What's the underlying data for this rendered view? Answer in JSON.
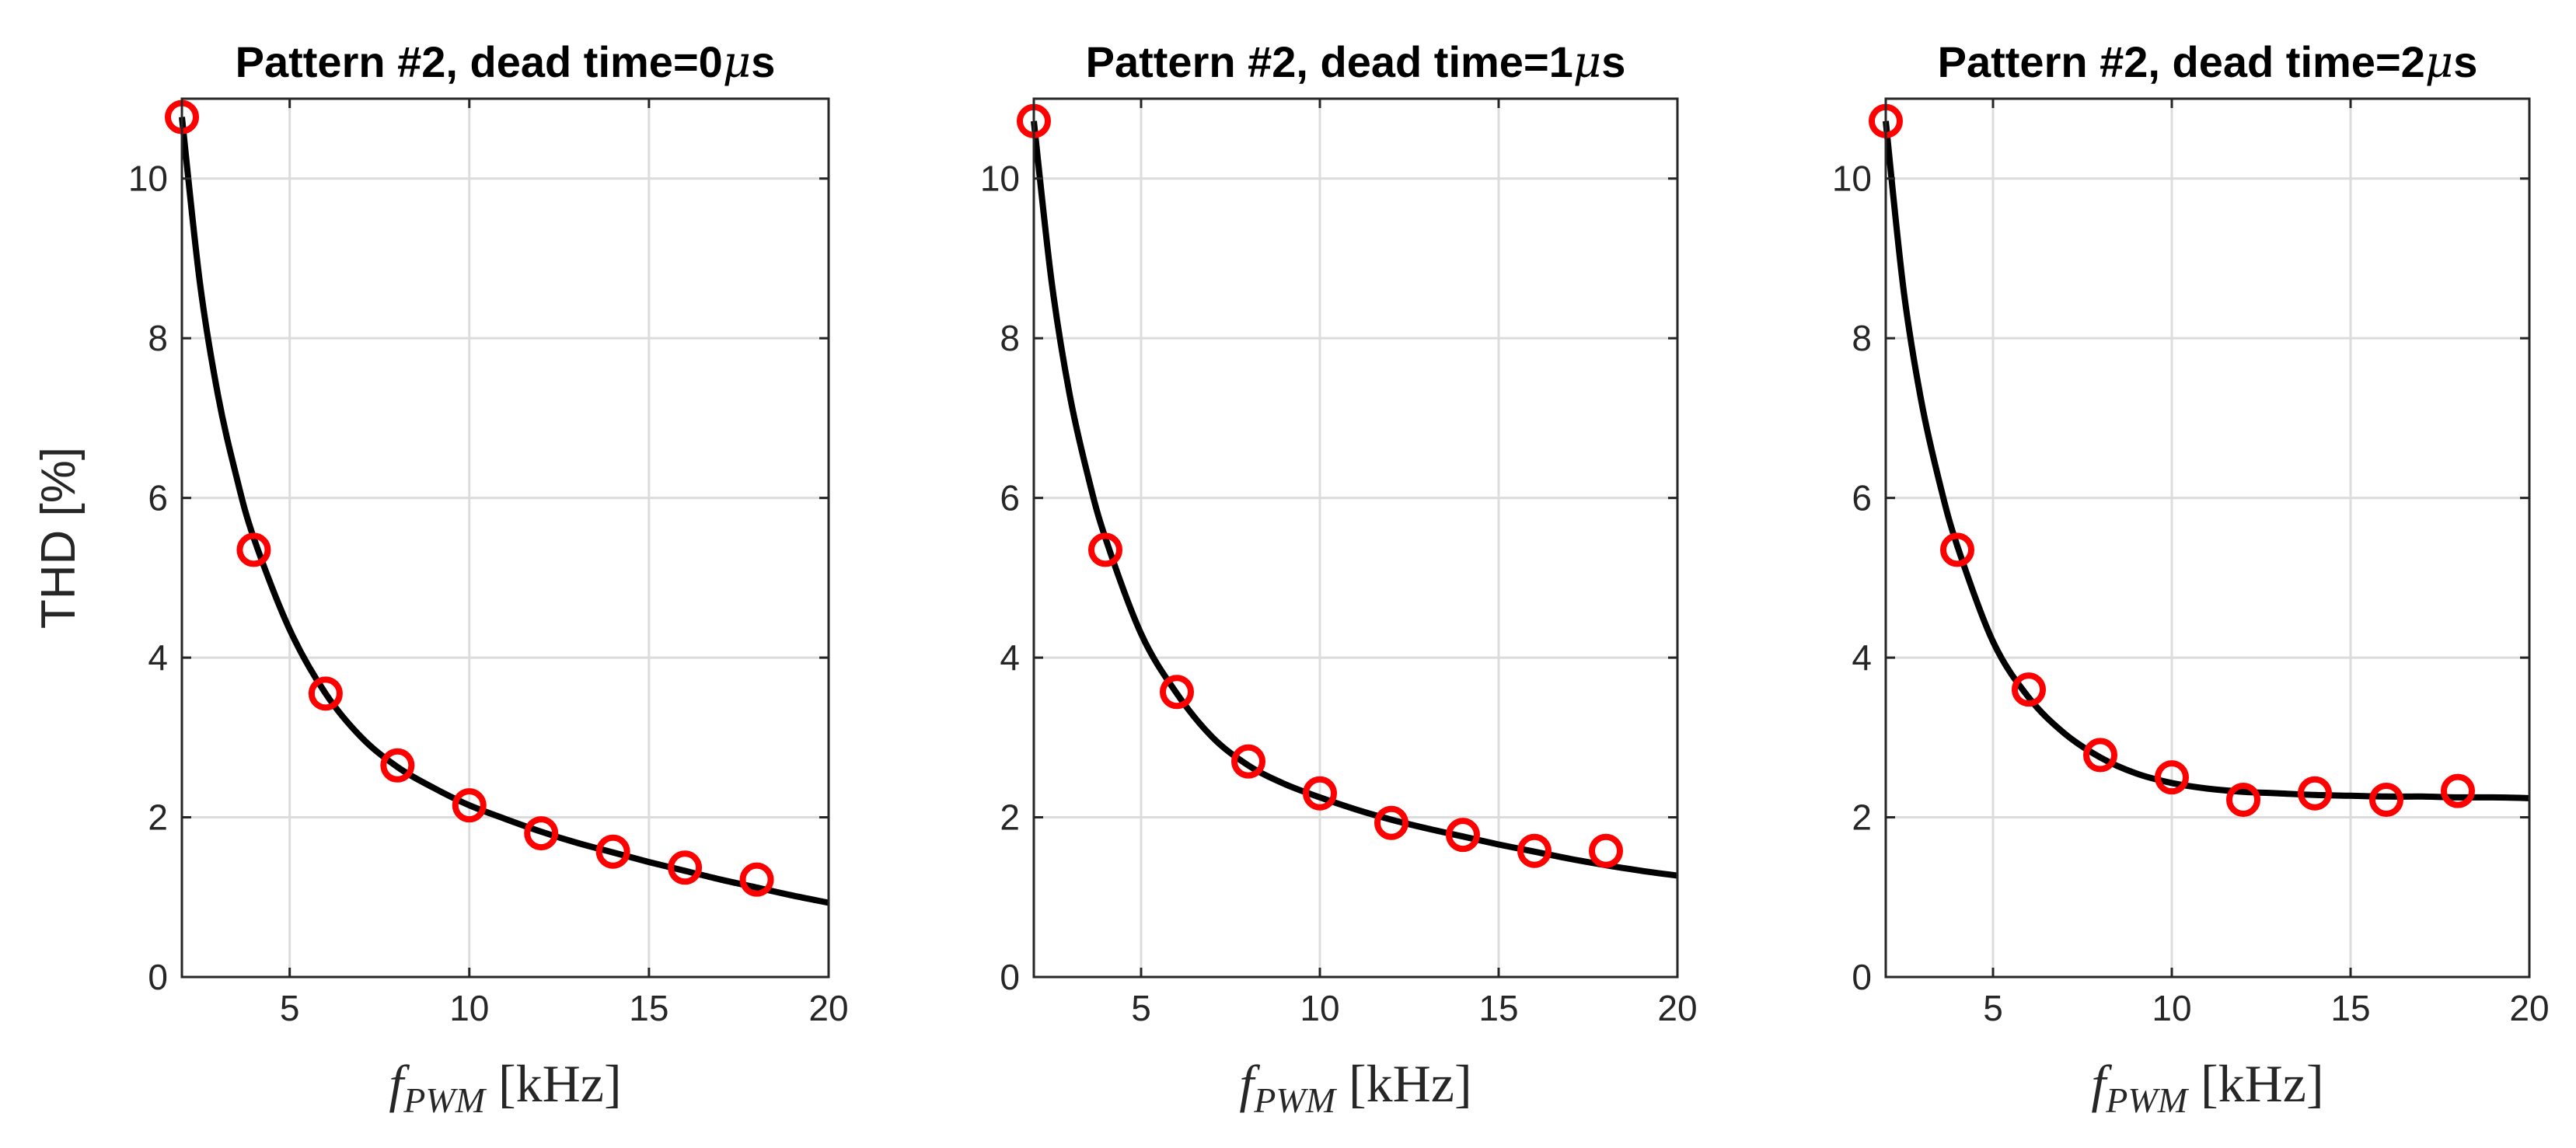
{
  "chart_data": [
    {
      "type": "scatter",
      "title": "Pattern #2, dead time=0μs",
      "title_prefix": "Pattern #2, dead time=0",
      "title_unit_mu": "μ",
      "title_unit_s": "s",
      "ylabel": "THD [%]",
      "xlabel_f": "f",
      "xlabel_sub": "PWM",
      "xlabel_unit": " [kHz]",
      "xlim": [
        2,
        20
      ],
      "ylim": [
        0,
        11
      ],
      "xticks": [
        5,
        10,
        15,
        20
      ],
      "yticks": [
        0,
        2,
        4,
        6,
        8,
        10
      ],
      "grid": true,
      "series": [
        {
          "kind": "markers",
          "marker": "circle",
          "color": "#ff0000",
          "x": [
            2,
            4,
            6,
            8,
            10,
            12,
            14,
            16,
            18
          ],
          "y": [
            10.77,
            5.35,
            3.55,
            2.65,
            2.15,
            1.8,
            1.57,
            1.37,
            1.22
          ]
        },
        {
          "kind": "line",
          "color": "#000000",
          "x": [
            2,
            2.5,
            3,
            3.5,
            4,
            5,
            6,
            7,
            8,
            9,
            10,
            11,
            12,
            13,
            14,
            15,
            16,
            17,
            18,
            19,
            20
          ],
          "y": [
            10.77,
            8.7,
            7.3,
            6.3,
            5.5,
            4.35,
            3.55,
            3.0,
            2.63,
            2.37,
            2.15,
            1.98,
            1.82,
            1.68,
            1.56,
            1.44,
            1.33,
            1.22,
            1.12,
            1.02,
            0.93
          ]
        }
      ]
    },
    {
      "type": "scatter",
      "title": "Pattern #2, dead time=1μs",
      "title_prefix": "Pattern #2, dead time=1",
      "title_unit_mu": "μ",
      "title_unit_s": "s",
      "ylabel": "",
      "xlabel_f": "f",
      "xlabel_sub": "PWM",
      "xlabel_unit": " [kHz]",
      "xlim": [
        2,
        20
      ],
      "ylim": [
        0,
        11
      ],
      "xticks": [
        5,
        10,
        15,
        20
      ],
      "yticks": [
        0,
        2,
        4,
        6,
        8,
        10
      ],
      "grid": true,
      "series": [
        {
          "kind": "markers",
          "marker": "circle",
          "color": "#ff0000",
          "x": [
            2,
            4,
            6,
            8,
            10,
            12,
            14,
            16,
            18
          ],
          "y": [
            10.72,
            5.35,
            3.57,
            2.7,
            2.3,
            1.93,
            1.78,
            1.58,
            1.58
          ]
        },
        {
          "kind": "line",
          "color": "#000000",
          "x": [
            2,
            2.5,
            3,
            3.5,
            4,
            5,
            6,
            7,
            8,
            9,
            10,
            11,
            12,
            13,
            14,
            15,
            16,
            17,
            18,
            19,
            20
          ],
          "y": [
            10.72,
            8.7,
            7.3,
            6.3,
            5.5,
            4.3,
            3.55,
            3.0,
            2.65,
            2.42,
            2.25,
            2.1,
            1.97,
            1.86,
            1.76,
            1.66,
            1.57,
            1.48,
            1.4,
            1.33,
            1.27
          ]
        }
      ]
    },
    {
      "type": "scatter",
      "title": "Pattern #2, dead time=2μs",
      "title_prefix": "Pattern #2, dead time=2",
      "title_unit_mu": "μ",
      "title_unit_s": "s",
      "ylabel": "",
      "xlabel_f": "f",
      "xlabel_sub": "PWM",
      "xlabel_unit": " [kHz]",
      "xlim": [
        2,
        20
      ],
      "ylim": [
        0,
        11
      ],
      "xticks": [
        5,
        10,
        15,
        20
      ],
      "yticks": [
        0,
        2,
        4,
        6,
        8,
        10
      ],
      "grid": true,
      "series": [
        {
          "kind": "markers",
          "marker": "circle",
          "color": "#ff0000",
          "x": [
            2,
            4,
            6,
            8,
            10,
            12,
            14,
            16,
            18
          ],
          "y": [
            10.72,
            5.35,
            3.6,
            2.78,
            2.5,
            2.22,
            2.3,
            2.22,
            2.33
          ]
        },
        {
          "kind": "line",
          "color": "#000000",
          "x": [
            2,
            2.5,
            3,
            3.5,
            4,
            5,
            6,
            7,
            8,
            9,
            10,
            11,
            12,
            13,
            14,
            15,
            16,
            17,
            18,
            19,
            20
          ],
          "y": [
            10.72,
            8.6,
            7.2,
            6.2,
            5.4,
            4.2,
            3.5,
            3.05,
            2.75,
            2.55,
            2.43,
            2.36,
            2.32,
            2.3,
            2.28,
            2.27,
            2.26,
            2.26,
            2.25,
            2.25,
            2.24
          ]
        }
      ]
    }
  ]
}
